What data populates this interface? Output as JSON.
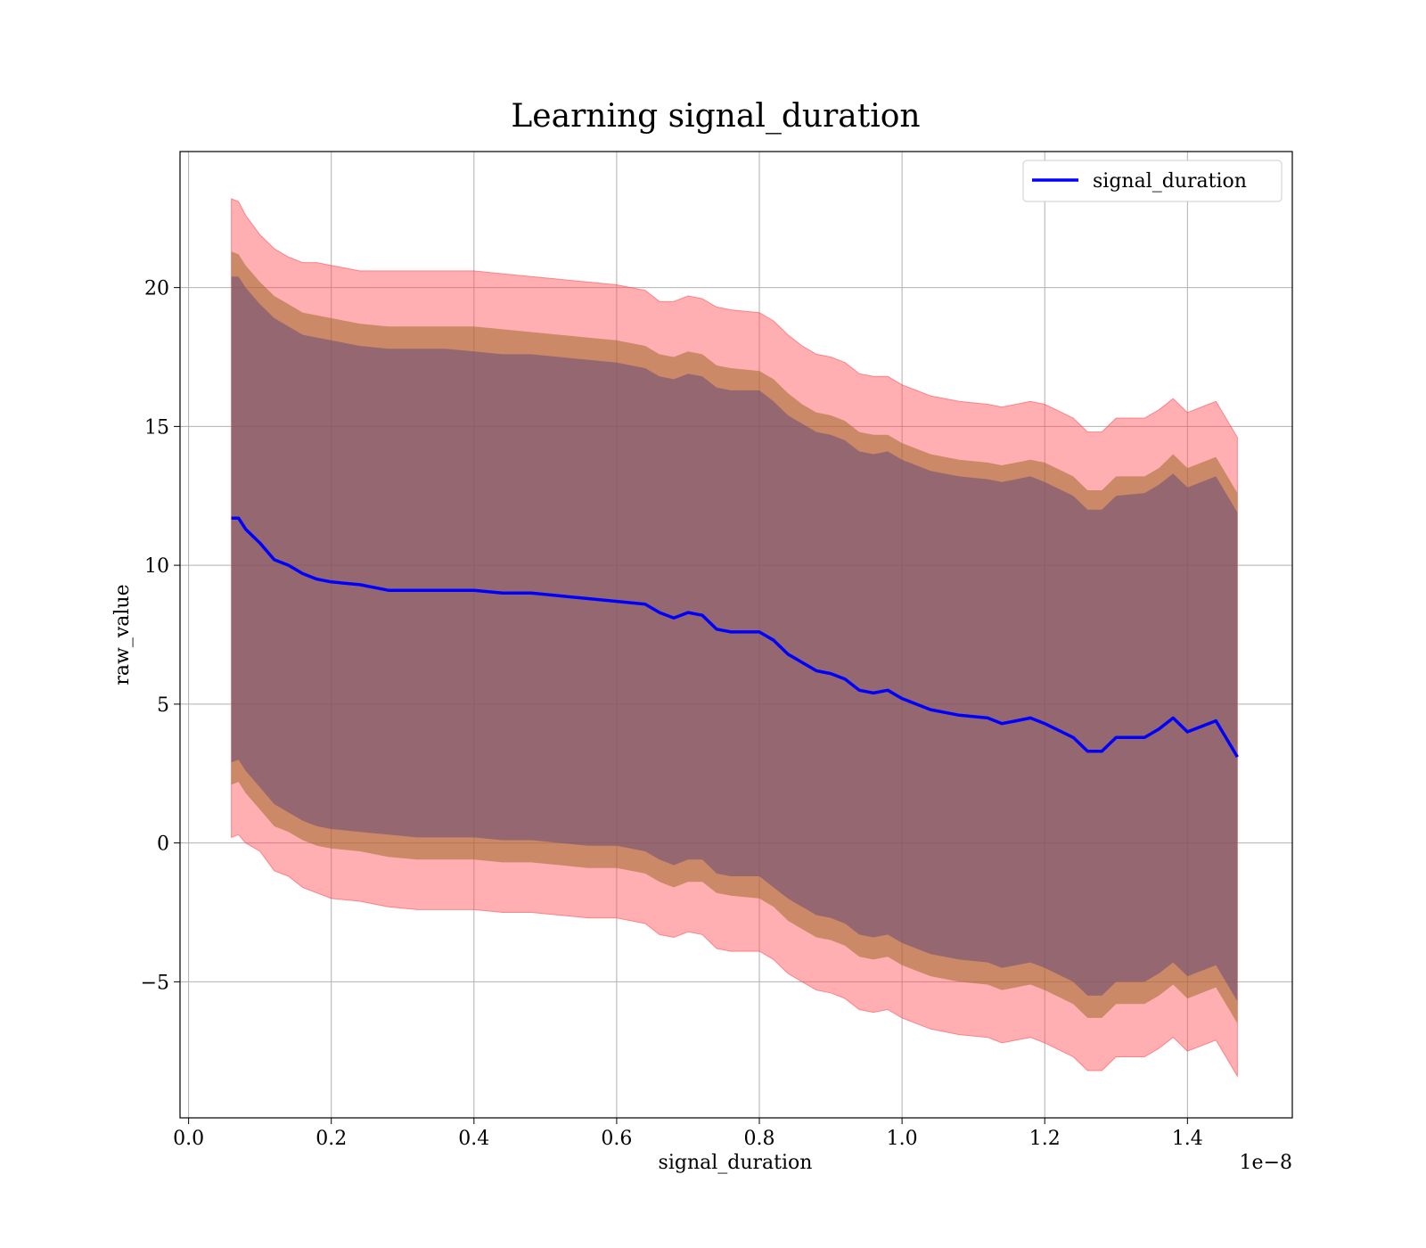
{
  "chart_data": {
    "type": "line",
    "title": "Learning signal_duration",
    "xlabel": "signal_duration",
    "ylabel": "raw_value",
    "x_offset_label": "1e−8",
    "xlim": [
      -0.012,
      1.547
    ],
    "ylim": [
      -9.9,
      24.9
    ],
    "x_ticks": [
      0.0,
      0.2,
      0.4,
      0.6,
      0.8,
      1.0,
      1.2,
      1.4
    ],
    "x_tick_labels": [
      "0.0",
      "0.2",
      "0.4",
      "0.6",
      "0.8",
      "1.0",
      "1.2",
      "1.4"
    ],
    "y_ticks": [
      -5,
      0,
      5,
      10,
      15,
      20
    ],
    "y_tick_labels": [
      "−5",
      "0",
      "5",
      "10",
      "15",
      "20"
    ],
    "grid": true,
    "legend": {
      "position": "top-right",
      "entries": [
        "signal_duration"
      ]
    },
    "colors": {
      "line": "#0000ff",
      "band_outer": "#ff4d55",
      "band_middle": "#a06a2a",
      "band_inner": "#6a4a7a"
    },
    "series": [
      {
        "name": "signal_duration",
        "x": [
          0.06,
          0.07,
          0.08,
          0.1,
          0.12,
          0.14,
          0.16,
          0.18,
          0.2,
          0.24,
          0.28,
          0.32,
          0.36,
          0.4,
          0.44,
          0.48,
          0.52,
          0.56,
          0.6,
          0.64,
          0.66,
          0.68,
          0.7,
          0.72,
          0.74,
          0.76,
          0.8,
          0.82,
          0.84,
          0.86,
          0.88,
          0.9,
          0.92,
          0.94,
          0.96,
          0.98,
          1.0,
          1.04,
          1.08,
          1.12,
          1.14,
          1.16,
          1.18,
          1.2,
          1.24,
          1.26,
          1.28,
          1.3,
          1.34,
          1.36,
          1.38,
          1.4,
          1.44,
          1.47
        ],
        "y": [
          11.7,
          11.7,
          11.3,
          10.8,
          10.2,
          10.0,
          9.7,
          9.5,
          9.4,
          9.3,
          9.1,
          9.1,
          9.1,
          9.1,
          9.0,
          9.0,
          8.9,
          8.8,
          8.7,
          8.6,
          8.3,
          8.1,
          8.3,
          8.2,
          7.7,
          7.6,
          7.6,
          7.3,
          6.8,
          6.5,
          6.2,
          6.1,
          5.9,
          5.5,
          5.4,
          5.5,
          5.2,
          4.8,
          4.6,
          4.5,
          4.3,
          4.4,
          4.5,
          4.3,
          3.8,
          3.3,
          3.3,
          3.8,
          3.8,
          4.1,
          4.5,
          4.0,
          4.4,
          3.1
        ],
        "band_outer_upper": [
          23.2,
          23.1,
          22.6,
          21.9,
          21.4,
          21.1,
          20.9,
          20.9,
          20.8,
          20.6,
          20.6,
          20.6,
          20.6,
          20.6,
          20.5,
          20.4,
          20.3,
          20.2,
          20.1,
          19.9,
          19.5,
          19.5,
          19.7,
          19.6,
          19.3,
          19.2,
          19.1,
          18.8,
          18.3,
          17.9,
          17.6,
          17.5,
          17.3,
          16.9,
          16.8,
          16.8,
          16.5,
          16.1,
          15.9,
          15.8,
          15.7,
          15.8,
          15.9,
          15.8,
          15.3,
          14.8,
          14.8,
          15.3,
          15.3,
          15.6,
          16.0,
          15.5,
          15.9,
          14.6
        ],
        "band_outer_lower": [
          0.2,
          0.3,
          0.0,
          -0.3,
          -1.0,
          -1.2,
          -1.6,
          -1.8,
          -2.0,
          -2.1,
          -2.3,
          -2.4,
          -2.4,
          -2.4,
          -2.5,
          -2.5,
          -2.6,
          -2.7,
          -2.7,
          -2.9,
          -3.3,
          -3.4,
          -3.2,
          -3.3,
          -3.8,
          -3.9,
          -3.9,
          -4.2,
          -4.7,
          -5.0,
          -5.3,
          -5.4,
          -5.6,
          -6.0,
          -6.1,
          -6.0,
          -6.3,
          -6.7,
          -6.9,
          -7.0,
          -7.2,
          -7.1,
          -7.0,
          -7.2,
          -7.7,
          -8.2,
          -8.2,
          -7.7,
          -7.7,
          -7.4,
          -7.0,
          -7.5,
          -7.1,
          -8.4
        ],
        "band_middle_upper": [
          21.3,
          21.2,
          20.8,
          20.2,
          19.7,
          19.4,
          19.1,
          19.0,
          18.9,
          18.7,
          18.6,
          18.6,
          18.6,
          18.6,
          18.5,
          18.4,
          18.3,
          18.2,
          18.1,
          17.9,
          17.6,
          17.5,
          17.7,
          17.6,
          17.2,
          17.1,
          17.0,
          16.7,
          16.2,
          15.8,
          15.5,
          15.4,
          15.2,
          14.8,
          14.7,
          14.7,
          14.4,
          14.0,
          13.8,
          13.7,
          13.6,
          13.7,
          13.8,
          13.7,
          13.2,
          12.7,
          12.7,
          13.2,
          13.2,
          13.5,
          14.0,
          13.5,
          13.9,
          12.6
        ],
        "band_middle_lower": [
          2.1,
          2.2,
          1.8,
          1.2,
          0.6,
          0.4,
          0.1,
          -0.1,
          -0.2,
          -0.3,
          -0.5,
          -0.6,
          -0.6,
          -0.6,
          -0.7,
          -0.7,
          -0.8,
          -0.9,
          -0.9,
          -1.1,
          -1.4,
          -1.6,
          -1.4,
          -1.4,
          -1.8,
          -1.9,
          -2.0,
          -2.3,
          -2.8,
          -3.1,
          -3.4,
          -3.5,
          -3.7,
          -4.1,
          -4.2,
          -4.1,
          -4.4,
          -4.8,
          -5.0,
          -5.1,
          -5.3,
          -5.2,
          -5.1,
          -5.3,
          -5.8,
          -6.3,
          -6.3,
          -5.8,
          -5.8,
          -5.5,
          -5.1,
          -5.6,
          -5.2,
          -6.5
        ],
        "band_inner_upper": [
          20.4,
          20.4,
          20.0,
          19.4,
          18.9,
          18.6,
          18.3,
          18.2,
          18.1,
          17.9,
          17.8,
          17.8,
          17.8,
          17.7,
          17.6,
          17.6,
          17.5,
          17.4,
          17.3,
          17.1,
          16.8,
          16.7,
          16.9,
          16.8,
          16.4,
          16.3,
          16.3,
          15.9,
          15.4,
          15.1,
          14.8,
          14.7,
          14.5,
          14.1,
          14.0,
          14.1,
          13.8,
          13.4,
          13.2,
          13.1,
          13.0,
          13.1,
          13.2,
          13.0,
          12.5,
          12.0,
          12.0,
          12.5,
          12.6,
          12.9,
          13.3,
          12.8,
          13.2,
          11.9
        ],
        "band_inner_lower": [
          2.9,
          3.0,
          2.6,
          2.0,
          1.4,
          1.1,
          0.8,
          0.6,
          0.5,
          0.4,
          0.3,
          0.2,
          0.2,
          0.2,
          0.1,
          0.1,
          0.0,
          -0.1,
          -0.1,
          -0.3,
          -0.6,
          -0.8,
          -0.6,
          -0.6,
          -1.1,
          -1.2,
          -1.2,
          -1.6,
          -2.0,
          -2.3,
          -2.6,
          -2.7,
          -2.9,
          -3.3,
          -3.4,
          -3.3,
          -3.6,
          -4.0,
          -4.2,
          -4.3,
          -4.5,
          -4.4,
          -4.3,
          -4.5,
          -5.0,
          -5.5,
          -5.5,
          -5.0,
          -5.0,
          -4.7,
          -4.3,
          -4.8,
          -4.4,
          -5.7
        ]
      }
    ]
  }
}
